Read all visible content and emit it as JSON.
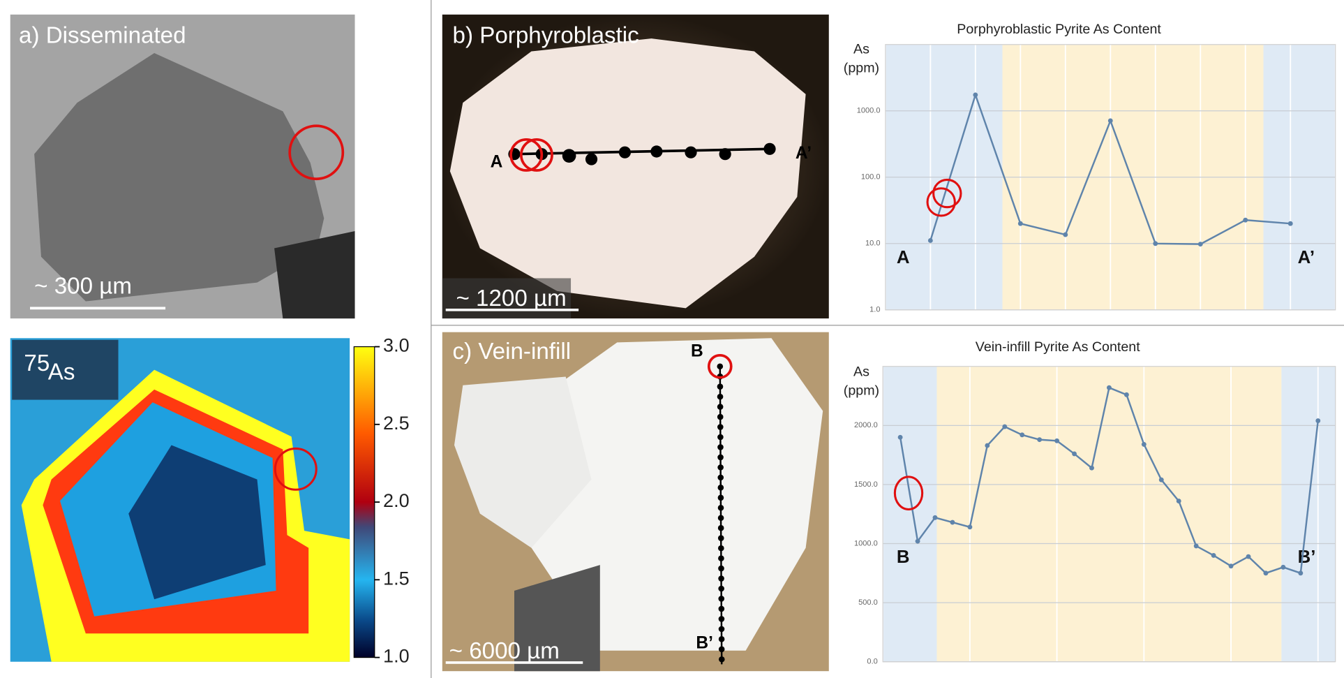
{
  "panels": {
    "a": {
      "label": "a) Disseminated",
      "scale": "~ 300 µm",
      "map_isotope": "75",
      "map_element": "As",
      "colorbar": {
        "lim": [
          1,
          3
        ],
        "ticks": [
          {
            "value": 1,
            "label": "1.0"
          },
          {
            "value": 1.5,
            "label": "1.5"
          },
          {
            "value": 2,
            "label": "2.0"
          },
          {
            "value": 2.5,
            "label": "2.5"
          },
          {
            "value": 3,
            "label": "3.0"
          }
        ]
      }
    },
    "b": {
      "label": "b) Porphyroblastic",
      "scale": "~ 1200 µm",
      "start": "A",
      "end": "A’"
    },
    "c": {
      "label": "c) Vein-infill",
      "scale": "~ 6000 µm",
      "start": "B",
      "end": "B’"
    }
  },
  "chart_data": [
    {
      "type": "line",
      "title": "Porphyroblastic Pyrite As Content",
      "ylabel": [
        "As",
        "(ppm)"
      ],
      "annotations": [
        "A",
        "A’"
      ],
      "x": [
        1,
        2,
        3,
        4,
        5,
        6,
        7,
        8,
        9
      ],
      "xlim": [
        0,
        10
      ],
      "xgrid": [
        0,
        1,
        2,
        3,
        4,
        5,
        6,
        7,
        8,
        9,
        10
      ],
      "series": [
        {
          "name": "As",
          "color": "#5f84ab",
          "values": [
            11.1,
            1740,
            20,
            13.6,
            710,
            10,
            9.8,
            22.6,
            20
          ]
        }
      ],
      "log_y": true,
      "ylim": [
        1,
        10000
      ],
      "yticks": [
        {
          "value": 1,
          "label": "1.0"
        },
        {
          "value": 10,
          "label": "10.0"
        },
        {
          "value": 100,
          "label": "100.0"
        },
        {
          "value": 1000,
          "label": "1000.0"
        }
      ],
      "bands": [
        {
          "from": 0,
          "to": 2.6,
          "color": "#dfeaf5"
        },
        {
          "from": 2.6,
          "to": 8.4,
          "color": "#fdf1d3"
        },
        {
          "from": 8.4,
          "to": 10,
          "color": "#dfeaf5"
        }
      ]
    },
    {
      "type": "line",
      "title": "Vein-infill Pyrite As Content",
      "ylabel": [
        "As",
        "(ppm)"
      ],
      "annotations": [
        "B",
        "B’"
      ],
      "x": [
        1,
        2,
        3,
        4,
        5,
        6,
        7,
        8,
        9,
        10,
        11,
        12,
        13,
        14,
        15,
        16,
        17,
        18,
        19,
        20,
        21,
        22,
        23,
        24,
        25
      ],
      "xlim": [
        0,
        26
      ],
      "xgrid": [
        0,
        5,
        10,
        15,
        20,
        25
      ],
      "series": [
        {
          "name": "As",
          "color": "#5f84ab",
          "values": [
            1900,
            1020,
            1220,
            1180,
            1140,
            1830,
            1990,
            1920,
            1880,
            1870,
            1760,
            1640,
            2320,
            2260,
            1840,
            1540,
            1360,
            980,
            900,
            810,
            890,
            750,
            800,
            750,
            2040
          ]
        }
      ],
      "log_y": false,
      "ylim": [
        0,
        2500
      ],
      "yticks": [
        {
          "value": 0,
          "label": "0.0"
        },
        {
          "value": 500,
          "label": "500.0"
        },
        {
          "value": 1000,
          "label": "1000.0"
        },
        {
          "value": 1500,
          "label": "1500.0"
        },
        {
          "value": 2000,
          "label": "2000.0"
        }
      ],
      "bands": [
        {
          "from": 0,
          "to": 3.1,
          "color": "#dfeaf5"
        },
        {
          "from": 3.1,
          "to": 22.9,
          "color": "#fdf1d3"
        },
        {
          "from": 22.9,
          "to": 26,
          "color": "#dfeaf5"
        }
      ]
    }
  ]
}
